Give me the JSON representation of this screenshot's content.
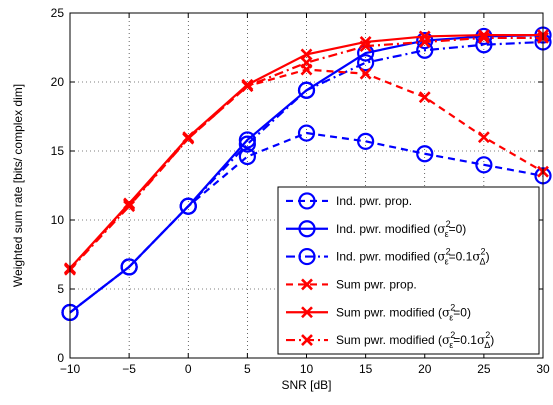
{
  "chart_data": {
    "type": "line",
    "title": "",
    "xlabel": "SNR [dB]",
    "ylabel": "Weighted sum rate [bits/ complex dim]",
    "xlim": [
      -10,
      30
    ],
    "ylim": [
      0,
      25
    ],
    "grid": true,
    "legend_position": "bottom-right",
    "x": [
      -10,
      -5,
      0,
      5,
      10,
      15,
      20,
      25,
      30
    ],
    "x_ticks": [
      -10,
      -5,
      0,
      5,
      10,
      15,
      20,
      25,
      30
    ],
    "y_ticks": [
      0,
      5,
      10,
      15,
      20,
      25
    ],
    "series": [
      {
        "name": "Ind. pwr. prop.",
        "color": "#0000ff",
        "line_style": "dashed",
        "marker": "circle",
        "values": [
          3.3,
          6.6,
          11.0,
          14.6,
          16.3,
          15.7,
          14.8,
          14.0,
          13.2
        ]
      },
      {
        "name": "Ind. pwr. modified (σ²ε=0)",
        "color": "#0000ff",
        "line_style": "solid",
        "marker": "circle",
        "values": [
          3.3,
          6.6,
          11.0,
          15.8,
          19.4,
          22.1,
          23.0,
          23.3,
          23.4
        ]
      },
      {
        "name": "Ind. pwr. modified (σ²ε=0.1σ²Δ)",
        "color": "#0000ff",
        "line_style": "dashdot",
        "marker": "circle",
        "values": [
          3.3,
          6.6,
          11.0,
          15.5,
          19.4,
          21.4,
          22.3,
          22.7,
          22.9
        ]
      },
      {
        "name": "Sum pwr. prop.",
        "color": "#ff0000",
        "line_style": "dashed",
        "marker": "x",
        "values": [
          6.5,
          11.1,
          15.9,
          19.7,
          20.9,
          20.6,
          18.9,
          16.0,
          13.5
        ]
      },
      {
        "name": "Sum pwr. modified (σ²ε=0)",
        "color": "#ff0000",
        "line_style": "solid",
        "marker": "x",
        "values": [
          6.5,
          11.2,
          16.0,
          19.8,
          22.0,
          22.9,
          23.3,
          23.4,
          23.4
        ]
      },
      {
        "name": "Sum pwr. modified (σ²ε=0.1σ²Δ)",
        "color": "#ff0000",
        "line_style": "dashdot",
        "marker": "x",
        "values": [
          6.4,
          11.0,
          15.9,
          19.7,
          21.4,
          22.6,
          22.9,
          23.2,
          23.2
        ]
      }
    ]
  },
  "legend": {
    "entries": [
      {
        "prefix": "Ind. pwr. prop.",
        "sym": "",
        "suffix": ""
      },
      {
        "prefix": "Ind. pwr. modified (",
        "sym": "σ",
        "sup": "2",
        "sub": "ε",
        "suffix": "=0)"
      },
      {
        "prefix": "Ind. pwr. modified (",
        "sym": "σ",
        "sup": "2",
        "sub": "ε",
        "mid": "=0.1",
        "sym2": "σ",
        "sup2": "2",
        "sub2": "Δ",
        "suffix": ")"
      },
      {
        "prefix": "Sum pwr. prop.",
        "sym": "",
        "suffix": ""
      },
      {
        "prefix": "Sum pwr. modified (",
        "sym": "σ",
        "sup": "2",
        "sub": "ε",
        "suffix": "=0)"
      },
      {
        "prefix": "Sum pwr. modified (",
        "sym": "σ",
        "sup": "2",
        "sub": "ε",
        "mid": "=0.1",
        "sym2": "σ",
        "sup2": "2",
        "sub2": "Δ",
        "suffix": ")"
      }
    ]
  }
}
